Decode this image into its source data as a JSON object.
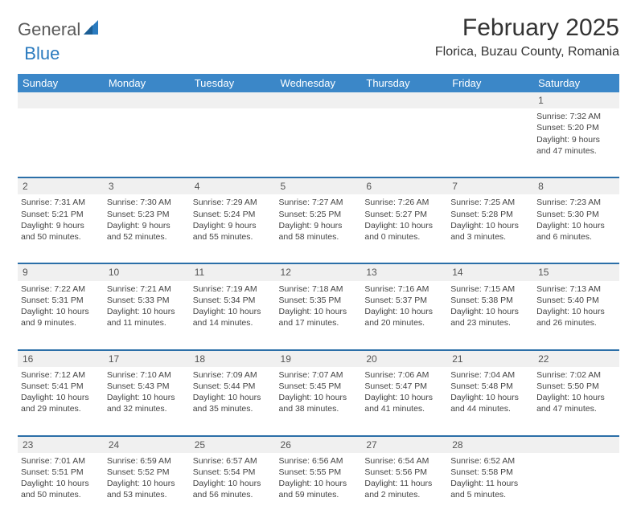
{
  "logo": {
    "part1": "General",
    "part2": "Blue"
  },
  "title": "February 2025",
  "location": "Florica, Buzau County, Romania",
  "colors": {
    "header_bg": "#3b87c8",
    "row_sep": "#2b6fa8",
    "daynum_bg": "#f0f0f0",
    "logo_gray": "#5a5a5a",
    "logo_blue": "#2b7bbf"
  },
  "weekdays": [
    "Sunday",
    "Monday",
    "Tuesday",
    "Wednesday",
    "Thursday",
    "Friday",
    "Saturday"
  ],
  "weeks": [
    {
      "nums": [
        "",
        "",
        "",
        "",
        "",
        "",
        "1"
      ],
      "cells": [
        null,
        null,
        null,
        null,
        null,
        null,
        {
          "sunrise": "7:32 AM",
          "sunset": "5:20 PM",
          "daylight": "9 hours and 47 minutes."
        }
      ]
    },
    {
      "nums": [
        "2",
        "3",
        "4",
        "5",
        "6",
        "7",
        "8"
      ],
      "cells": [
        {
          "sunrise": "7:31 AM",
          "sunset": "5:21 PM",
          "daylight": "9 hours and 50 minutes."
        },
        {
          "sunrise": "7:30 AM",
          "sunset": "5:23 PM",
          "daylight": "9 hours and 52 minutes."
        },
        {
          "sunrise": "7:29 AM",
          "sunset": "5:24 PM",
          "daylight": "9 hours and 55 minutes."
        },
        {
          "sunrise": "7:27 AM",
          "sunset": "5:25 PM",
          "daylight": "9 hours and 58 minutes."
        },
        {
          "sunrise": "7:26 AM",
          "sunset": "5:27 PM",
          "daylight": "10 hours and 0 minutes."
        },
        {
          "sunrise": "7:25 AM",
          "sunset": "5:28 PM",
          "daylight": "10 hours and 3 minutes."
        },
        {
          "sunrise": "7:23 AM",
          "sunset": "5:30 PM",
          "daylight": "10 hours and 6 minutes."
        }
      ]
    },
    {
      "nums": [
        "9",
        "10",
        "11",
        "12",
        "13",
        "14",
        "15"
      ],
      "cells": [
        {
          "sunrise": "7:22 AM",
          "sunset": "5:31 PM",
          "daylight": "10 hours and 9 minutes."
        },
        {
          "sunrise": "7:21 AM",
          "sunset": "5:33 PM",
          "daylight": "10 hours and 11 minutes."
        },
        {
          "sunrise": "7:19 AM",
          "sunset": "5:34 PM",
          "daylight": "10 hours and 14 minutes."
        },
        {
          "sunrise": "7:18 AM",
          "sunset": "5:35 PM",
          "daylight": "10 hours and 17 minutes."
        },
        {
          "sunrise": "7:16 AM",
          "sunset": "5:37 PM",
          "daylight": "10 hours and 20 minutes."
        },
        {
          "sunrise": "7:15 AM",
          "sunset": "5:38 PM",
          "daylight": "10 hours and 23 minutes."
        },
        {
          "sunrise": "7:13 AM",
          "sunset": "5:40 PM",
          "daylight": "10 hours and 26 minutes."
        }
      ]
    },
    {
      "nums": [
        "16",
        "17",
        "18",
        "19",
        "20",
        "21",
        "22"
      ],
      "cells": [
        {
          "sunrise": "7:12 AM",
          "sunset": "5:41 PM",
          "daylight": "10 hours and 29 minutes."
        },
        {
          "sunrise": "7:10 AM",
          "sunset": "5:43 PM",
          "daylight": "10 hours and 32 minutes."
        },
        {
          "sunrise": "7:09 AM",
          "sunset": "5:44 PM",
          "daylight": "10 hours and 35 minutes."
        },
        {
          "sunrise": "7:07 AM",
          "sunset": "5:45 PM",
          "daylight": "10 hours and 38 minutes."
        },
        {
          "sunrise": "7:06 AM",
          "sunset": "5:47 PM",
          "daylight": "10 hours and 41 minutes."
        },
        {
          "sunrise": "7:04 AM",
          "sunset": "5:48 PM",
          "daylight": "10 hours and 44 minutes."
        },
        {
          "sunrise": "7:02 AM",
          "sunset": "5:50 PM",
          "daylight": "10 hours and 47 minutes."
        }
      ]
    },
    {
      "nums": [
        "23",
        "24",
        "25",
        "26",
        "27",
        "28",
        ""
      ],
      "cells": [
        {
          "sunrise": "7:01 AM",
          "sunset": "5:51 PM",
          "daylight": "10 hours and 50 minutes."
        },
        {
          "sunrise": "6:59 AM",
          "sunset": "5:52 PM",
          "daylight": "10 hours and 53 minutes."
        },
        {
          "sunrise": "6:57 AM",
          "sunset": "5:54 PM",
          "daylight": "10 hours and 56 minutes."
        },
        {
          "sunrise": "6:56 AM",
          "sunset": "5:55 PM",
          "daylight": "10 hours and 59 minutes."
        },
        {
          "sunrise": "6:54 AM",
          "sunset": "5:56 PM",
          "daylight": "11 hours and 2 minutes."
        },
        {
          "sunrise": "6:52 AM",
          "sunset": "5:58 PM",
          "daylight": "11 hours and 5 minutes."
        },
        null
      ]
    }
  ],
  "labels": {
    "sunrise": "Sunrise:",
    "sunset": "Sunset:",
    "daylight": "Daylight:"
  }
}
